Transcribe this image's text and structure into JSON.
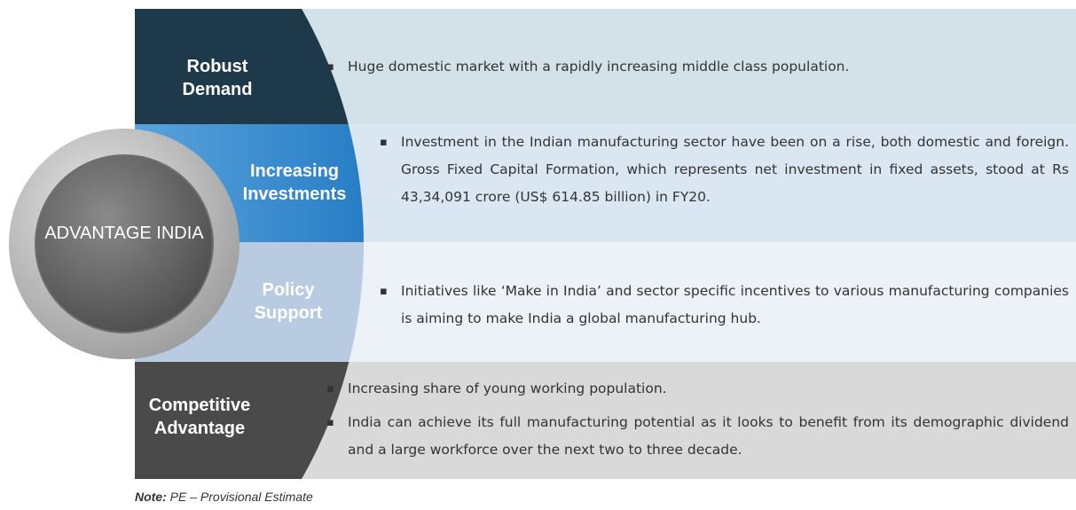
{
  "center": "ADVANTAGE INDIA",
  "rows": [
    {
      "label": "Robust Demand",
      "bullets": [
        "Huge domestic market with a rapidly increasing middle class population."
      ]
    },
    {
      "label": "Increasing Investments",
      "bullets": [
        "Investment in the Indian manufacturing sector have been on a rise, both domestic and foreign. Gross Fixed Capital Formation, which represents net investment in fixed assets, stood at Rs 43,34,091 crore (US$ 614.85 billion) in FY20."
      ]
    },
    {
      "label": "Policy Support",
      "bullets": [
        "Initiatives like ‘Make in India’ and sector specific incentives to various manufacturing companies is aiming to make India a global manufacturing hub."
      ]
    },
    {
      "label": "Competitive Advantage",
      "bullets": [
        "Increasing share of young working population.",
        "India can achieve its full manufacturing potential as it looks to benefit from its demographic dividend and a large workforce over the next two to three decade."
      ]
    }
  ],
  "note": {
    "prefix": "Note:",
    "text": "PE – Provisional Estimate"
  }
}
